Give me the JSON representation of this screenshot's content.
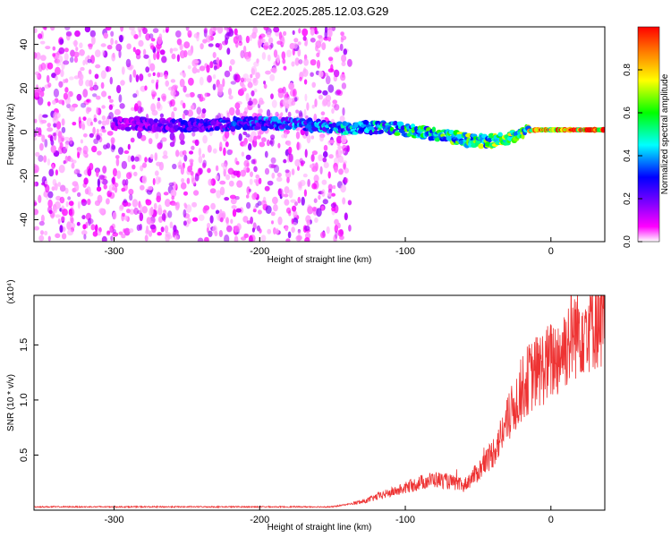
{
  "chart_data": [
    {
      "type": "heatmap",
      "title": "C2E2.2025.285.12.03.G29",
      "xlabel": "Height of straight line (km)",
      "ylabel": "Frequency (Hz)",
      "xlim": [
        -355,
        37
      ],
      "ylim": [
        -50,
        48
      ],
      "x_ticks": [
        -300,
        -200,
        -100,
        0
      ],
      "y_ticks": [
        -40,
        -20,
        0,
        20,
        40
      ],
      "colorbar": {
        "label": "Normalized spectral amplitude",
        "range": [
          0.0,
          1.0
        ],
        "ticks": [
          0.0,
          0.2,
          0.4,
          0.6,
          0.8
        ],
        "tick_labels": [
          "0.0",
          "0.2",
          "0.4",
          "0.6",
          "0.8"
        ],
        "colormap": [
          "#ffffff",
          "#ff00ff",
          "#7f00ff",
          "#0000ff",
          "#00ffff",
          "#00ff00",
          "#ffff00",
          "#ff7f00",
          "#ff0000"
        ]
      },
      "noise_region_end_x": -138,
      "signal_track": {
        "x": [
          -300,
          -250,
          -210,
          -180,
          -150,
          -130,
          -110,
          -90,
          -70,
          -55,
          -40,
          -30,
          -20,
          -10,
          0,
          37
        ],
        "frequency": [
          4,
          3,
          4,
          4,
          2,
          2,
          2,
          0,
          -2,
          -4,
          -4,
          -3,
          0,
          1,
          1,
          1
        ]
      }
    },
    {
      "type": "line",
      "xlabel": "Height of straight line (km)",
      "ylabel": "SNR (10 * v/v)",
      "y_multiplier": "(x10⁴)",
      "xlim": [
        -355,
        37
      ],
      "ylim": [
        0,
        19500
      ],
      "x_ticks": [
        -300,
        -200,
        -100,
        0
      ],
      "y_ticks": [
        5000,
        10000,
        15000
      ],
      "y_tick_labels": [
        "0.5",
        "1.0",
        "1.5"
      ],
      "line_color": "#ee3333",
      "series": [
        {
          "x": [
            -355,
            -250,
            -150,
            -128,
            -120,
            -110,
            -100,
            -90,
            -80,
            -70,
            -60,
            -50,
            -40,
            -35,
            -30,
            -25,
            -20,
            -15,
            -10,
            -5,
            0,
            5,
            10,
            15,
            20,
            25,
            30,
            37
          ],
          "values": [
            300,
            300,
            300,
            800,
            1200,
            1600,
            2000,
            2500,
            2800,
            2600,
            2200,
            3500,
            5200,
            6500,
            8000,
            9500,
            11000,
            12000,
            12500,
            13000,
            13500,
            14000,
            15000,
            16000,
            16600,
            17000,
            17300,
            17500
          ]
        }
      ]
    }
  ]
}
